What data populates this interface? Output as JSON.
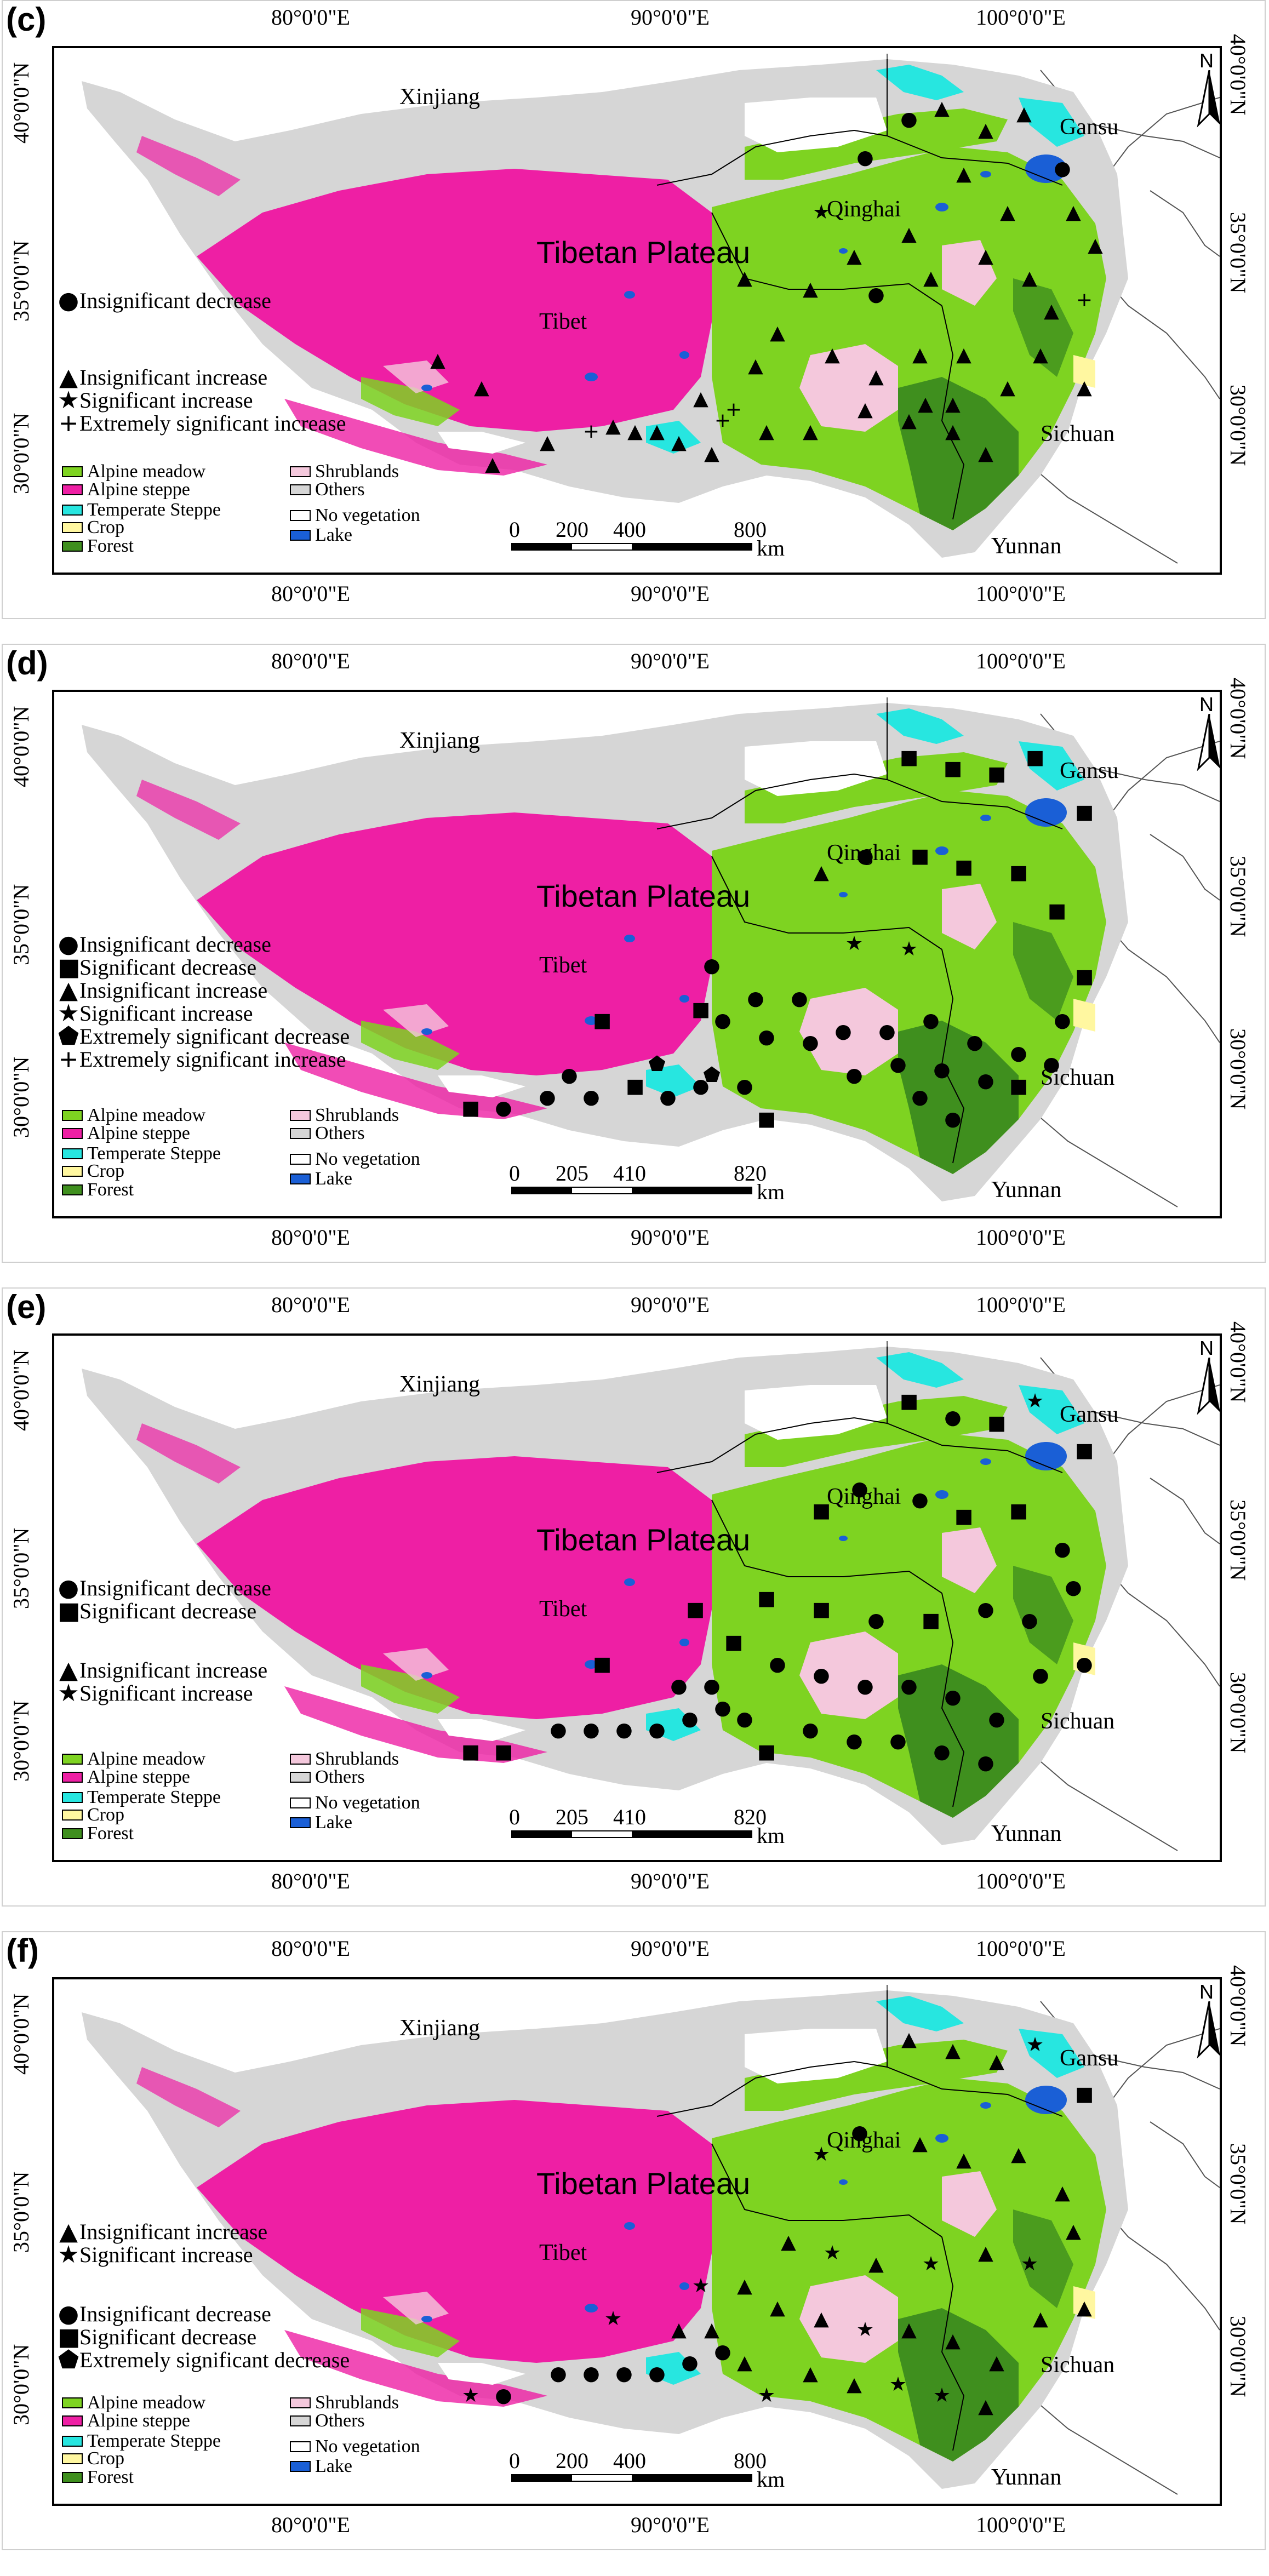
{
  "panels": [
    {
      "letter": "(c)",
      "scale": {
        "t0": "0",
        "t1": "200",
        "t2": "400",
        "t3": "800",
        "unit": "km"
      },
      "trend_legend_top": [
        "Insignificant decrease"
      ],
      "trend_legend_bottom": [
        "Insignificant increase",
        "Significant increase",
        "Extremely significant increase"
      ],
      "trend_syms_top": [
        "●"
      ],
      "trend_syms_bottom": [
        "▲",
        "★",
        "+"
      ]
    },
    {
      "letter": "(d)",
      "scale": {
        "t0": "0",
        "t1": "205",
        "t2": "410",
        "t3": "820",
        "unit": "km"
      },
      "trend_legend_top": [
        "Insignificant decrease",
        "Significant decrease",
        "Insignificant increase",
        "Significant increase",
        "Extremely significant decrease",
        "Extremely significant increase"
      ],
      "trend_legend_bottom": [],
      "trend_syms_top": [
        "●",
        "■",
        "▲",
        "★",
        "⬟",
        "+"
      ],
      "trend_syms_bottom": []
    },
    {
      "letter": "(e)",
      "scale": {
        "t0": "0",
        "t1": "205",
        "t2": "410",
        "t3": "820",
        "unit": "km"
      },
      "trend_legend_top": [
        "Insignificant decrease",
        "Significant decrease"
      ],
      "trend_legend_bottom": [
        "Insignificant increase",
        "Significant increase"
      ],
      "trend_syms_top": [
        "●",
        "■"
      ],
      "trend_syms_bottom": [
        "▲",
        "★"
      ]
    },
    {
      "letter": "(f)",
      "scale": {
        "t0": "0",
        "t1": "200",
        "t2": "400",
        "t3": "800",
        "unit": "km"
      },
      "trend_legend_top": [
        "Insignificant increase",
        "Significant increase"
      ],
      "trend_legend_bottom": [
        "Insignificant decrease",
        "Significant decrease",
        "Extremely significant decrease"
      ],
      "trend_syms_top": [
        "▲",
        "★"
      ],
      "trend_syms_bottom": [
        "●",
        "■",
        "⬟"
      ]
    }
  ],
  "axes": {
    "lon": [
      "80°0'0\"E",
      "90°0'0\"E",
      "100°0'0\"E"
    ],
    "lat": [
      "40°0'0\"N",
      "35°0'0\"N",
      "30°0'0\"N"
    ]
  },
  "regions": {
    "xinjiang": "Xinjiang",
    "qinghai": "Qinghai",
    "plateau": "Tibetan Plateau",
    "tibet": "Tibet",
    "gansu": "Gansu",
    "sichuan": "Sichuan",
    "yunnan": "Yunnan"
  },
  "north": "N",
  "landcover": {
    "alpine_meadow": "Alpine meadow",
    "alpine_steppe": "Alpine steppe",
    "temperate_steppe": "Temperate Steppe",
    "crop": "Crop",
    "forest": "Forest",
    "shrublands": "Shrublands",
    "others": "Others",
    "no_vegetation": "No vegetation",
    "lake": "Lake"
  },
  "colors": {
    "alpine_meadow": "#7ed321",
    "alpine_steppe": "#ee1fa4",
    "temperate_steppe": "#27e6e0",
    "crop": "#fff7a0",
    "forest": "#3f8f1e",
    "shrublands": "#f4c8dc",
    "others": "#d6d6d6",
    "no_vegetation": "#ffffff",
    "lake": "#1a5fd6"
  }
}
